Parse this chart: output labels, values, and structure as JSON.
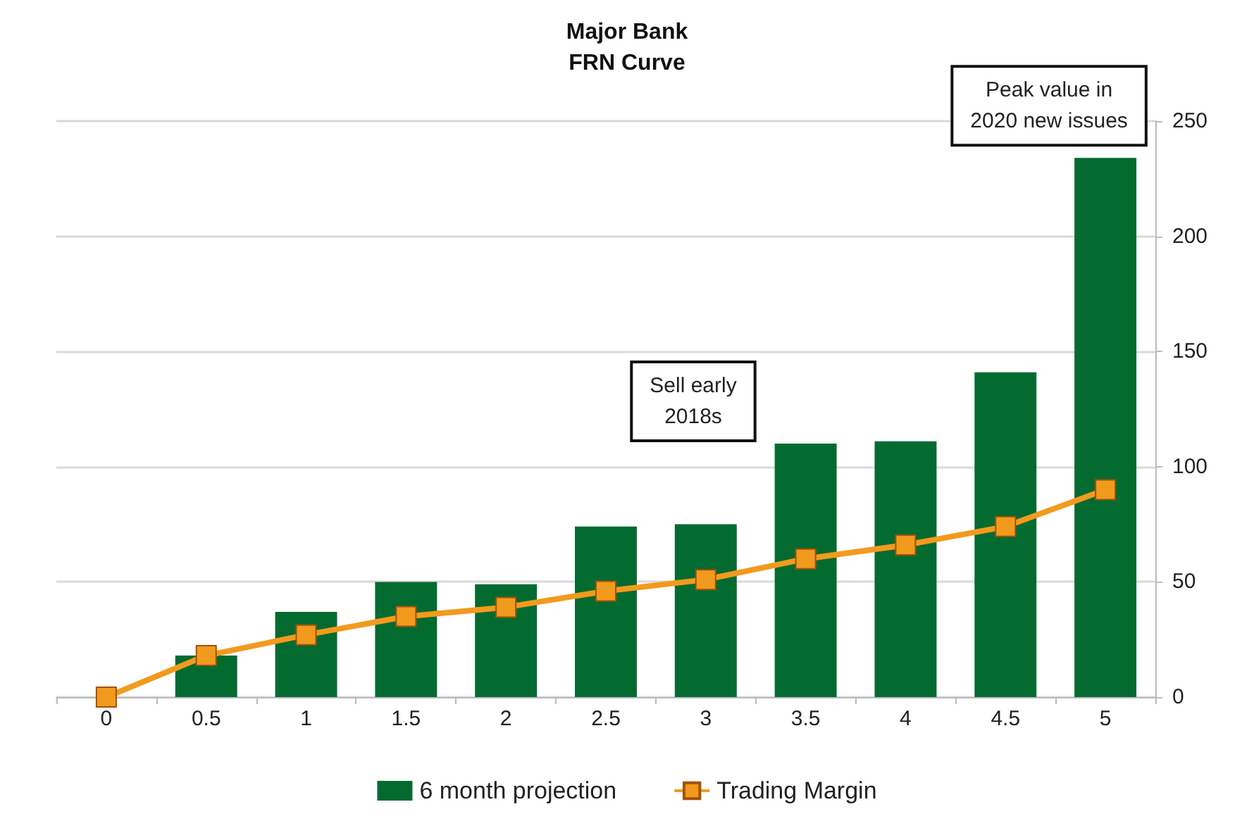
{
  "chart_data": {
    "type": "bar",
    "title": "Major Bank",
    "subtitle": "FRN Curve",
    "categories": [
      "0",
      "0.5",
      "1",
      "1.5",
      "2",
      "2.5",
      "3",
      "3.5",
      "4",
      "4.5",
      "5"
    ],
    "series": [
      {
        "name": "6 month projection",
        "color": "#046b30",
        "values": [
          null,
          18,
          37,
          50,
          49,
          74,
          75,
          110,
          111,
          141,
          234
        ]
      },
      {
        "name": "Trading Margin",
        "type": "line",
        "color": "#f29a1e",
        "marker": "square",
        "values": [
          0,
          18,
          27,
          35,
          39,
          46,
          51,
          60,
          66,
          74,
          90
        ]
      }
    ],
    "ylim": [
      0,
      250
    ],
    "yticks": [
      0,
      50,
      100,
      150,
      200,
      250
    ],
    "grid": "y",
    "legend": "bottom",
    "annotations": [
      {
        "text": "Peak value in\n2020 new issues",
        "x": "5",
        "y": 234
      },
      "Sell early\n2018s"
    ]
  }
}
